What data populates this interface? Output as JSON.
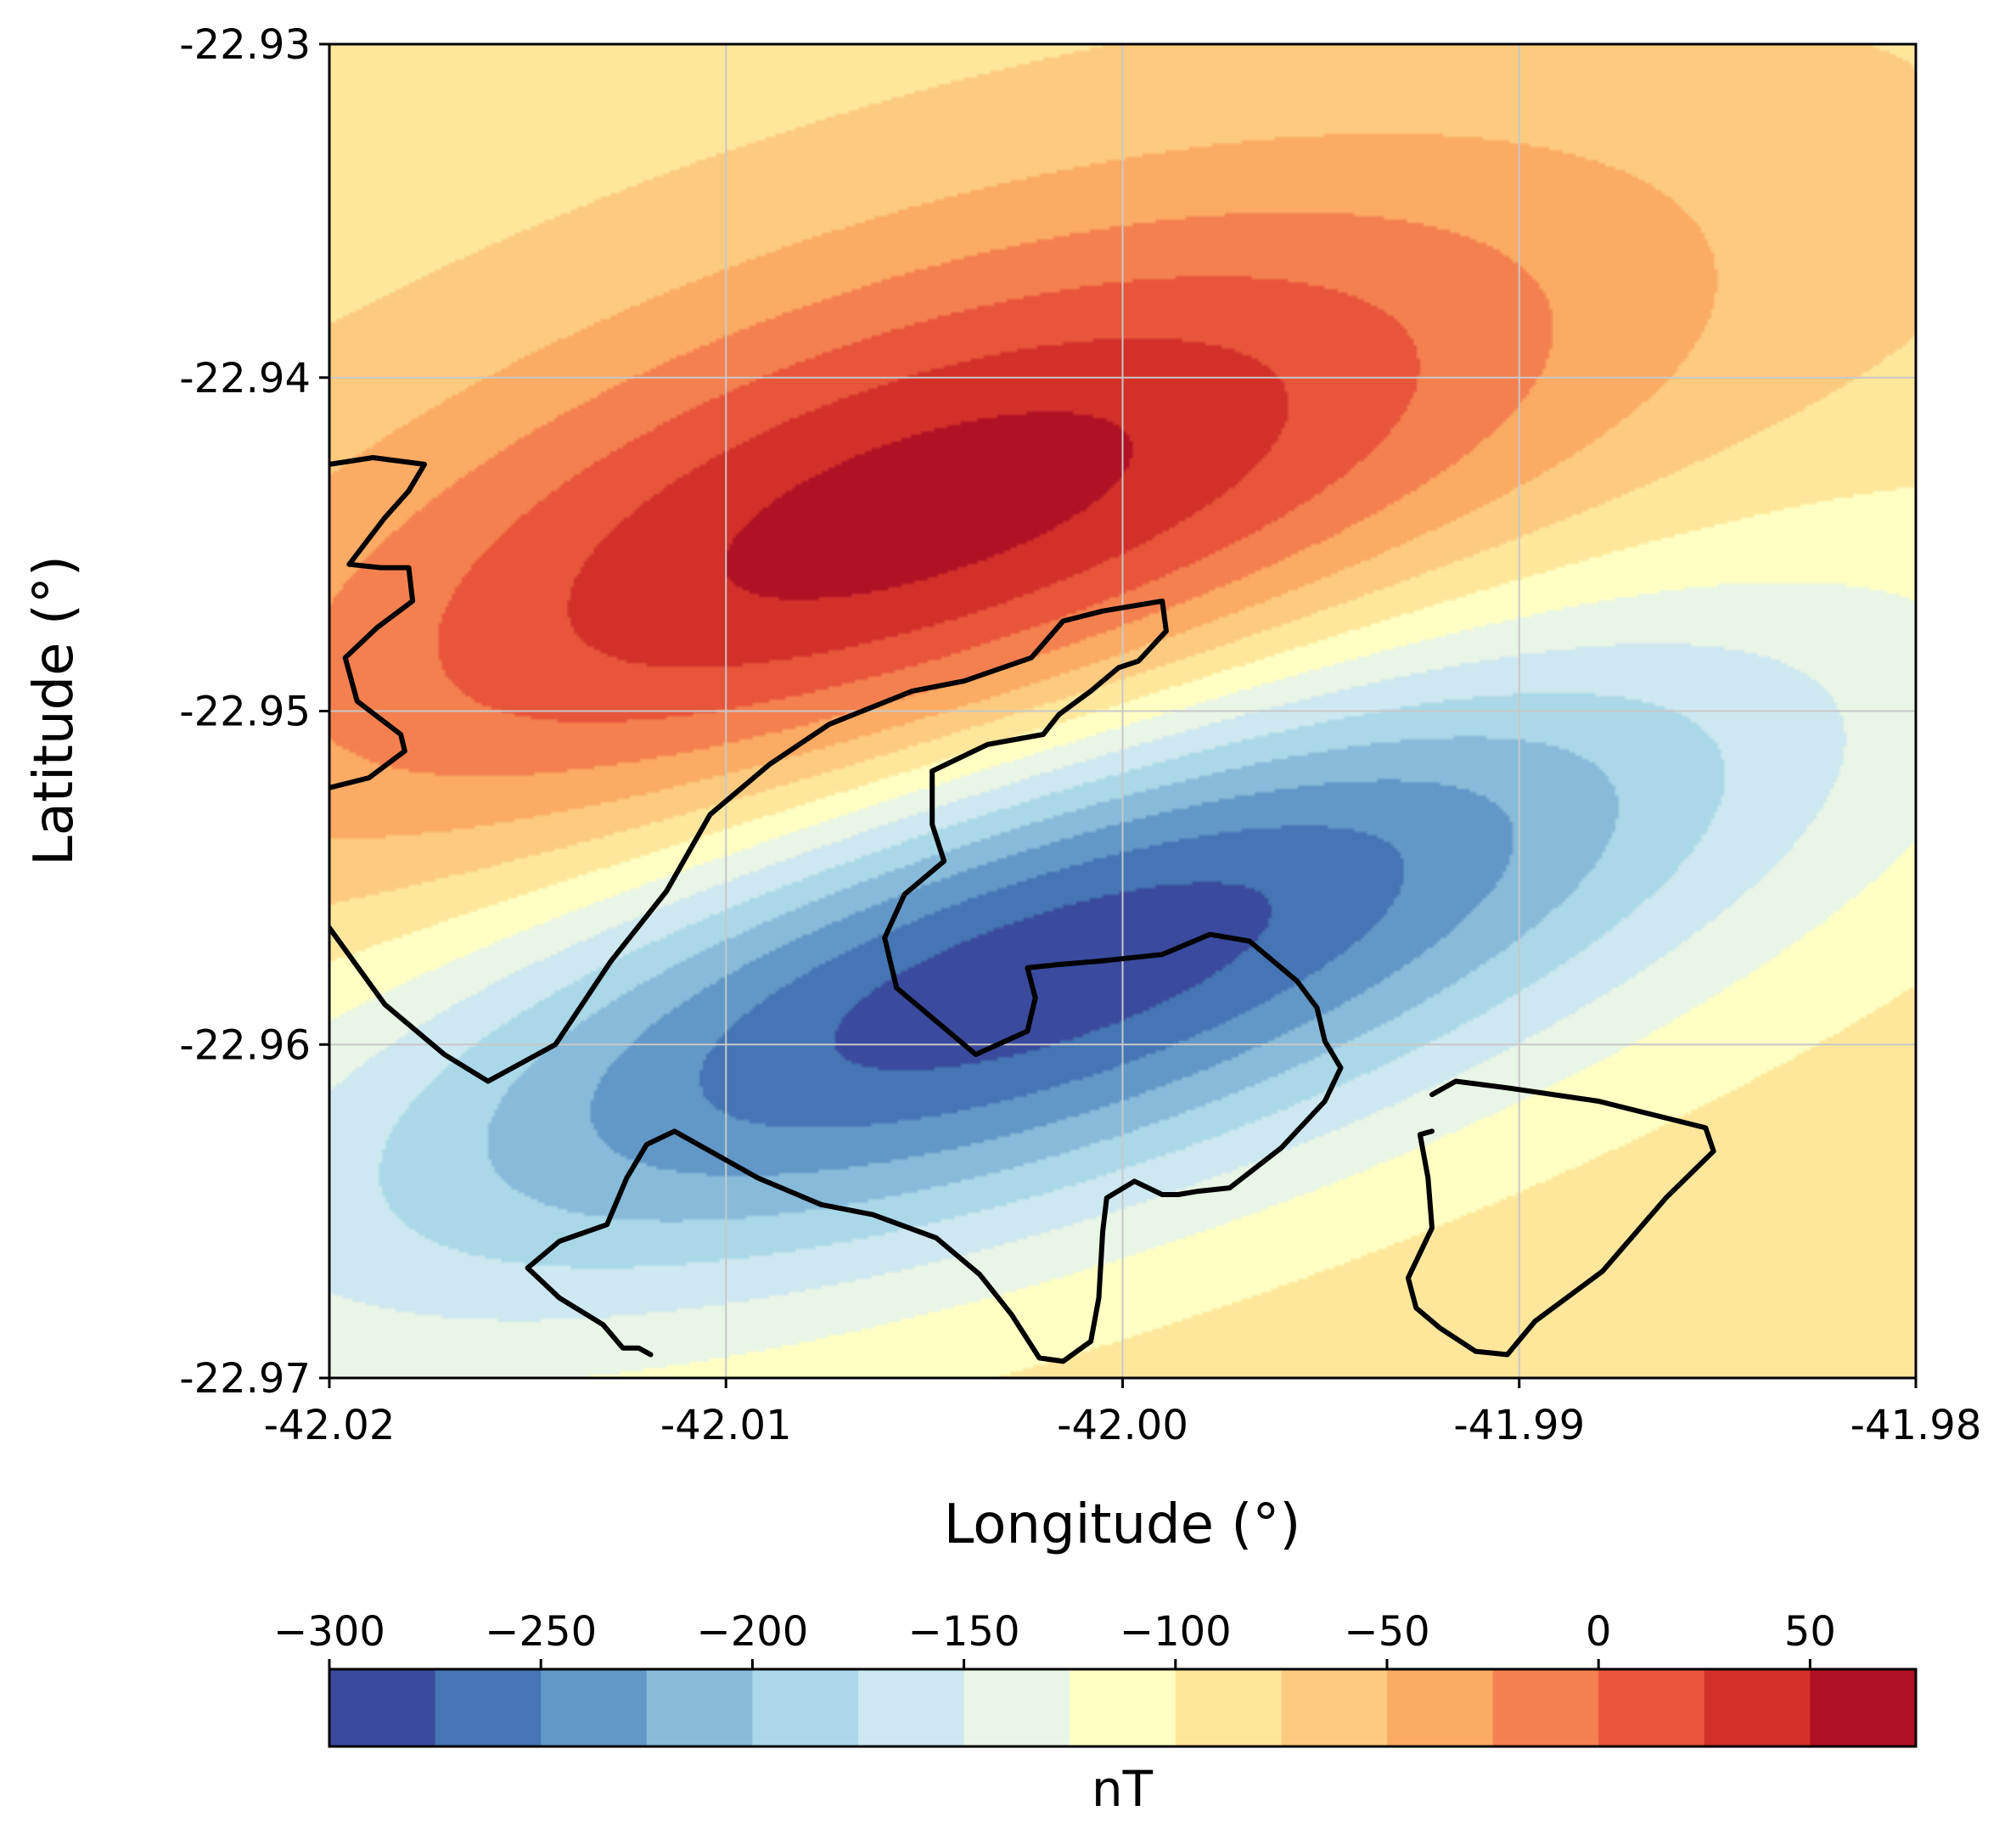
{
  "chart_data": {
    "type": "heatmap",
    "subtype": "filled-contour-map",
    "title": "",
    "xlabel": "Longitude (°)",
    "ylabel": "Latitude (°)",
    "xlim": [
      -42.02,
      -41.98
    ],
    "ylim": [
      -22.97,
      -22.93
    ],
    "x_ticks": [
      {
        "value": -42.02,
        "label": "-42.02"
      },
      {
        "value": -42.01,
        "label": "-42.01"
      },
      {
        "value": -42.0,
        "label": "-42.00"
      },
      {
        "value": -41.99,
        "label": "-41.99"
      },
      {
        "value": -41.98,
        "label": "-41.98"
      }
    ],
    "y_ticks": [
      {
        "value": -22.93,
        "label": "-22.93"
      },
      {
        "value": -22.94,
        "label": "-22.94"
      },
      {
        "value": -22.95,
        "label": "-22.95"
      },
      {
        "value": -22.96,
        "label": "-22.96"
      },
      {
        "value": -22.97,
        "label": "-22.97"
      }
    ],
    "grid": true,
    "colormap": "RdYlBu_r",
    "colorbar": {
      "label": "nT",
      "orientation": "horizontal",
      "placement": "bottom",
      "range": [
        -300,
        75
      ],
      "levels": [
        -300,
        -275,
        -250,
        -225,
        -200,
        -175,
        -150,
        -125,
        -100,
        -75,
        -50,
        -25,
        0,
        25,
        50,
        75
      ],
      "colors": [
        "#3a4a9e",
        "#4575b4",
        "#6298c8",
        "#88bbda",
        "#abd8e8",
        "#cde8f0",
        "#e9f5e6",
        "#ffffc4",
        "#fee79b",
        "#fdcb80",
        "#fbab63",
        "#f5804f",
        "#e8553b",
        "#d3302a",
        "#b01125"
      ],
      "ticks": [
        {
          "value": -300,
          "label": "−300"
        },
        {
          "value": -250,
          "label": "−250"
        },
        {
          "value": -200,
          "label": "−200"
        },
        {
          "value": -150,
          "label": "−150"
        },
        {
          "value": -100,
          "label": "−100"
        },
        {
          "value": -50,
          "label": "−50"
        },
        {
          "value": 0,
          "label": "0"
        },
        {
          "value": 50,
          "label": "50"
        }
      ]
    },
    "background_value": -85,
    "anomalies": [
      {
        "kind": "positive",
        "lon": -42.0048,
        "lat": -22.9442,
        "amplitude": 152,
        "sigma_major": 0.0125,
        "sigma_minor": 0.0052,
        "angle_deg": 22
      },
      {
        "kind": "negative",
        "lon": -42.0018,
        "lat": -22.9577,
        "amplitude": -212,
        "sigma_major": 0.014,
        "sigma_minor": 0.0048,
        "angle_deg": 22
      }
    ],
    "coastlines": [
      [
        [
          -42.02,
          -22.9426
        ],
        [
          -42.0189,
          -22.9424
        ],
        [
          -42.0176,
          -22.9426
        ],
        [
          -42.018,
          -22.9434
        ],
        [
          -42.0186,
          -22.9442
        ],
        [
          -42.0195,
          -22.9456
        ],
        [
          -42.0187,
          -22.9457
        ],
        [
          -42.018,
          -22.9457
        ],
        [
          -42.0179,
          -22.9467
        ],
        [
          -42.0188,
          -22.9475
        ],
        [
          -42.0196,
          -22.9484
        ],
        [
          -42.0193,
          -22.9497
        ],
        [
          -42.0182,
          -22.9507
        ],
        [
          -42.0181,
          -22.9512
        ],
        [
          -42.019,
          -22.952
        ],
        [
          -42.02,
          -22.9523
        ]
      ],
      [
        [
          -42.02,
          -22.9565
        ],
        [
          -42.0186,
          -22.9588
        ],
        [
          -42.0171,
          -22.9603
        ],
        [
          -42.016,
          -22.9611
        ],
        [
          -42.0143,
          -22.96
        ],
        [
          -42.0129,
          -22.9575
        ],
        [
          -42.0115,
          -22.9554
        ],
        [
          -42.0104,
          -22.9531
        ],
        [
          -42.0089,
          -22.9516
        ],
        [
          -42.0074,
          -22.9504
        ],
        [
          -42.0053,
          -22.9494
        ],
        [
          -42.004,
          -22.9491
        ],
        [
          -42.0023,
          -22.9484
        ],
        [
          -42.0015,
          -22.9473
        ],
        [
          -42.0005,
          -22.947
        ],
        [
          -41.999,
          -22.9467
        ],
        [
          -41.9989,
          -22.9476
        ],
        [
          -41.9996,
          -22.9485
        ],
        [
          -42.0001,
          -22.9487
        ],
        [
          -42.0008,
          -22.9494
        ],
        [
          -42.0016,
          -22.9501
        ],
        [
          -42.002,
          -22.9507
        ],
        [
          -42.0034,
          -22.951
        ],
        [
          -42.0048,
          -22.9518
        ],
        [
          -42.0048,
          -22.9534
        ],
        [
          -42.0045,
          -22.9545
        ],
        [
          -42.0055,
          -22.9555
        ],
        [
          -42.006,
          -22.9568
        ],
        [
          -42.0057,
          -22.9583
        ],
        [
          -42.0042,
          -22.9598
        ],
        [
          -42.0037,
          -22.9603
        ],
        [
          -42.0024,
          -22.9596
        ],
        [
          -42.0022,
          -22.9586
        ],
        [
          -42.0024,
          -22.9577
        ],
        [
          -42.0016,
          -22.9576
        ],
        [
          -42.0006,
          -22.9575
        ],
        [
          -41.999,
          -22.9573
        ],
        [
          -41.9978,
          -22.9567
        ],
        [
          -41.9968,
          -22.9569
        ],
        [
          -41.9956,
          -22.9581
        ],
        [
          -41.9951,
          -22.9589
        ],
        [
          -41.9949,
          -22.9599
        ],
        [
          -41.9945,
          -22.9607
        ],
        [
          -41.9949,
          -22.9617
        ],
        [
          -41.996,
          -22.9631
        ],
        [
          -41.9973,
          -22.9643
        ],
        [
          -41.9981,
          -22.9644
        ],
        [
          -41.9986,
          -22.9645
        ],
        [
          -41.999,
          -22.9645
        ],
        [
          -41.9997,
          -22.9641
        ],
        [
          -42.0004,
          -22.9646
        ],
        [
          -42.0005,
          -22.9656
        ],
        [
          -42.0006,
          -22.9676
        ],
        [
          -42.0008,
          -22.9689
        ],
        [
          -42.0015,
          -22.9695
        ],
        [
          -42.0021,
          -22.9694
        ],
        [
          -42.0028,
          -22.9681
        ],
        [
          -42.0036,
          -22.9669
        ],
        [
          -42.0047,
          -22.9658
        ],
        [
          -42.0063,
          -22.9651
        ],
        [
          -42.0076,
          -22.9648
        ],
        [
          -42.0082,
          -22.9645
        ],
        [
          -42.0092,
          -22.964
        ],
        [
          -42.0104,
          -22.9632
        ],
        [
          -42.0113,
          -22.9626
        ],
        [
          -42.012,
          -22.963
        ],
        [
          -42.0125,
          -22.964
        ],
        [
          -42.013,
          -22.9654
        ],
        [
          -42.0142,
          -22.9659
        ],
        [
          -42.015,
          -22.9667
        ],
        [
          -42.0142,
          -22.9676
        ],
        [
          -42.0131,
          -22.9684
        ],
        [
          -42.0126,
          -22.9691
        ],
        [
          -42.0122,
          -22.9691
        ],
        [
          -42.0119,
          -22.9693
        ]
      ],
      [
        [
          -41.9922,
          -22.9626
        ],
        [
          -41.9925,
          -22.9627
        ],
        [
          -41.9923,
          -22.964
        ],
        [
          -41.9922,
          -22.9655
        ],
        [
          -41.9928,
          -22.967
        ],
        [
          -41.9926,
          -22.9679
        ],
        [
          -41.992,
          -22.9685
        ],
        [
          -41.9911,
          -22.9692
        ],
        [
          -41.9903,
          -22.9693
        ],
        [
          -41.9896,
          -22.9683
        ],
        [
          -41.9879,
          -22.9668
        ],
        [
          -41.9863,
          -22.9646
        ],
        [
          -41.9851,
          -22.9632
        ],
        [
          -41.9853,
          -22.9625
        ],
        [
          -41.988,
          -22.9617
        ],
        [
          -41.9903,
          -22.9613
        ],
        [
          -41.9916,
          -22.9611
        ],
        [
          -41.9922,
          -22.9615
        ]
      ]
    ]
  }
}
